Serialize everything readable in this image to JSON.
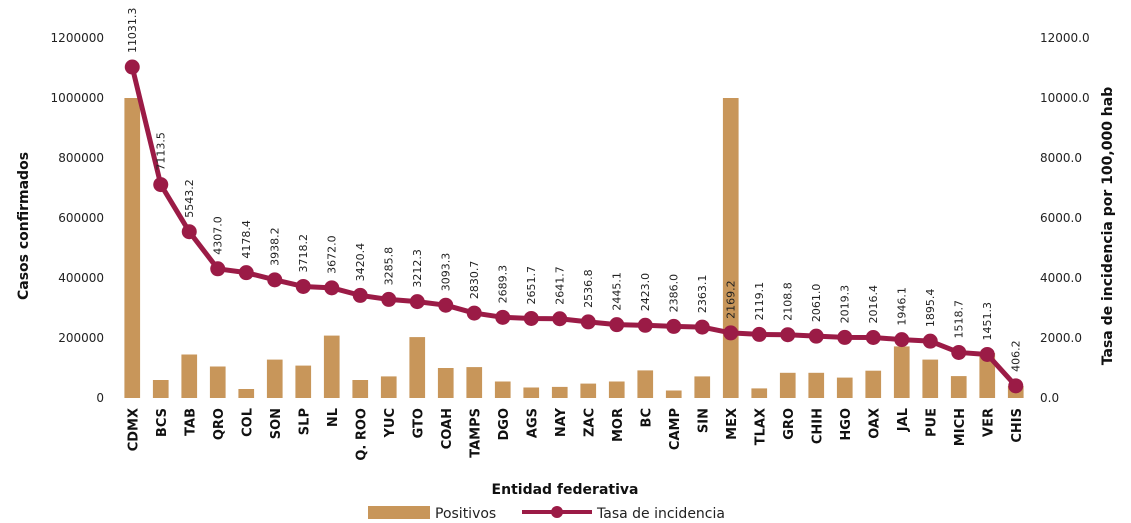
{
  "chart_data": {
    "type": "bar+line",
    "xlabel": "Entidad federativa",
    "ylabel_left": "Casos confirmados",
    "ylabel_right": "Tasa de incidencia por 100,000 hab",
    "ylim_left": [
      0,
      1200000
    ],
    "ylim_right": [
      0,
      12000
    ],
    "yticks_left": [
      "0",
      "200000",
      "400000",
      "600000",
      "800000",
      "1000000",
      "1200000"
    ],
    "yticks_right": [
      "0.0",
      "2000.0",
      "4000.0",
      "6000.0",
      "8000.0",
      "10000.0",
      "12000.0"
    ],
    "categories": [
      "CDMX",
      "BCS",
      "TAB",
      "QRO",
      "COL",
      "SON",
      "SLP",
      "NL",
      "Q. ROO",
      "YUC",
      "GTO",
      "COAH",
      "TAMPS",
      "DGO",
      "AGS",
      "NAY",
      "ZAC",
      "MOR",
      "BC",
      "CAMP",
      "SIN",
      "MEX",
      "TLAX",
      "GRO",
      "CHIH",
      "HGO",
      "OAX",
      "JAL",
      "PUE",
      "MICH",
      "VER",
      "CHIS"
    ],
    "series": [
      {
        "name": "Positivos",
        "type": "bar",
        "axis": "left",
        "color": "#C8965A",
        "values": [
          1000000,
          60000,
          145000,
          105000,
          30000,
          128000,
          108000,
          208000,
          60000,
          72000,
          203000,
          100000,
          103000,
          55000,
          35000,
          37000,
          48000,
          55000,
          92000,
          25000,
          72000,
          1000000,
          32000,
          84000,
          84000,
          68000,
          91000,
          172000,
          128000,
          73000,
          150000,
          40000
        ]
      },
      {
        "name": "Tasa de incidencia",
        "type": "line",
        "axis": "right",
        "color": "#9B1B46",
        "values": [
          11031.3,
          7113.5,
          5543.2,
          4307.0,
          4178.4,
          3938.2,
          3718.2,
          3672.0,
          3420.4,
          3285.8,
          3212.3,
          3093.3,
          2830.7,
          2689.3,
          2651.7,
          2641.7,
          2536.8,
          2445.1,
          2423.0,
          2386.0,
          2363.1,
          2169.2,
          2119.1,
          2108.8,
          2061.0,
          2019.3,
          2016.4,
          1946.1,
          1895.4,
          1518.7,
          1451.3,
          406.2
        ],
        "labels": [
          "11031.3",
          "7113.5",
          "5543.2",
          "4307.0",
          "4178.4",
          "3938.2",
          "3718.2",
          "3672.0",
          "3420.4",
          "3285.8",
          "3212.3",
          "3093.3",
          "2830.7",
          "2689.3",
          "2651.7",
          "2641.7",
          "2536.8",
          "2445.1",
          "2423.0",
          "2386.0",
          "2363.1",
          "2169.2",
          "2119.1",
          "2108.8",
          "2061.0",
          "2019.3",
          "2016.4",
          "1946.1",
          "1895.4",
          "1518.7",
          "1451.3",
          "406.2"
        ]
      }
    ],
    "legend_position": "bottom",
    "grid": false
  }
}
